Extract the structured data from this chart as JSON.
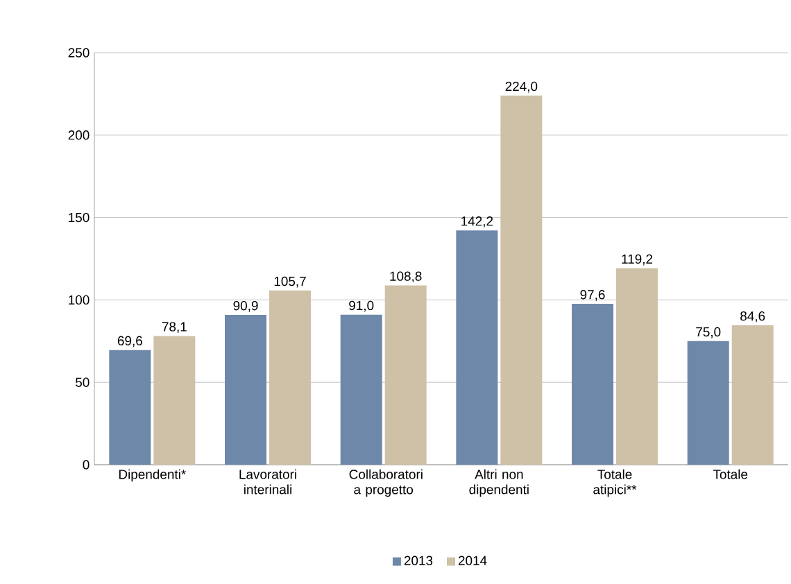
{
  "chart_data": {
    "type": "bar",
    "categories": [
      "Dipendenti*",
      "Lavoratori interinali",
      "Collaboratori a progetto",
      "Altri non dipendenti",
      "Totale atipici**",
      "Totale"
    ],
    "series": [
      {
        "name": "2013",
        "color": "#6e88aa",
        "values": [
          69.6,
          90.9,
          91.0,
          142.2,
          97.6,
          75.0
        ],
        "value_labels": [
          "69,6",
          "90,9",
          "91,0",
          "142,2",
          "97,6",
          "75,0"
        ]
      },
      {
        "name": "2014",
        "color": "#cfc1a7",
        "values": [
          78.1,
          105.7,
          108.8,
          224.0,
          119.2,
          84.6
        ],
        "value_labels": [
          "78,1",
          "105,7",
          "108,8",
          "224,0",
          "119,2",
          "84,6"
        ]
      }
    ],
    "ylim": [
      0,
      250
    ],
    "yticks": [
      0,
      50,
      100,
      150,
      200,
      250
    ],
    "grid": "y",
    "legend": "bottom"
  }
}
